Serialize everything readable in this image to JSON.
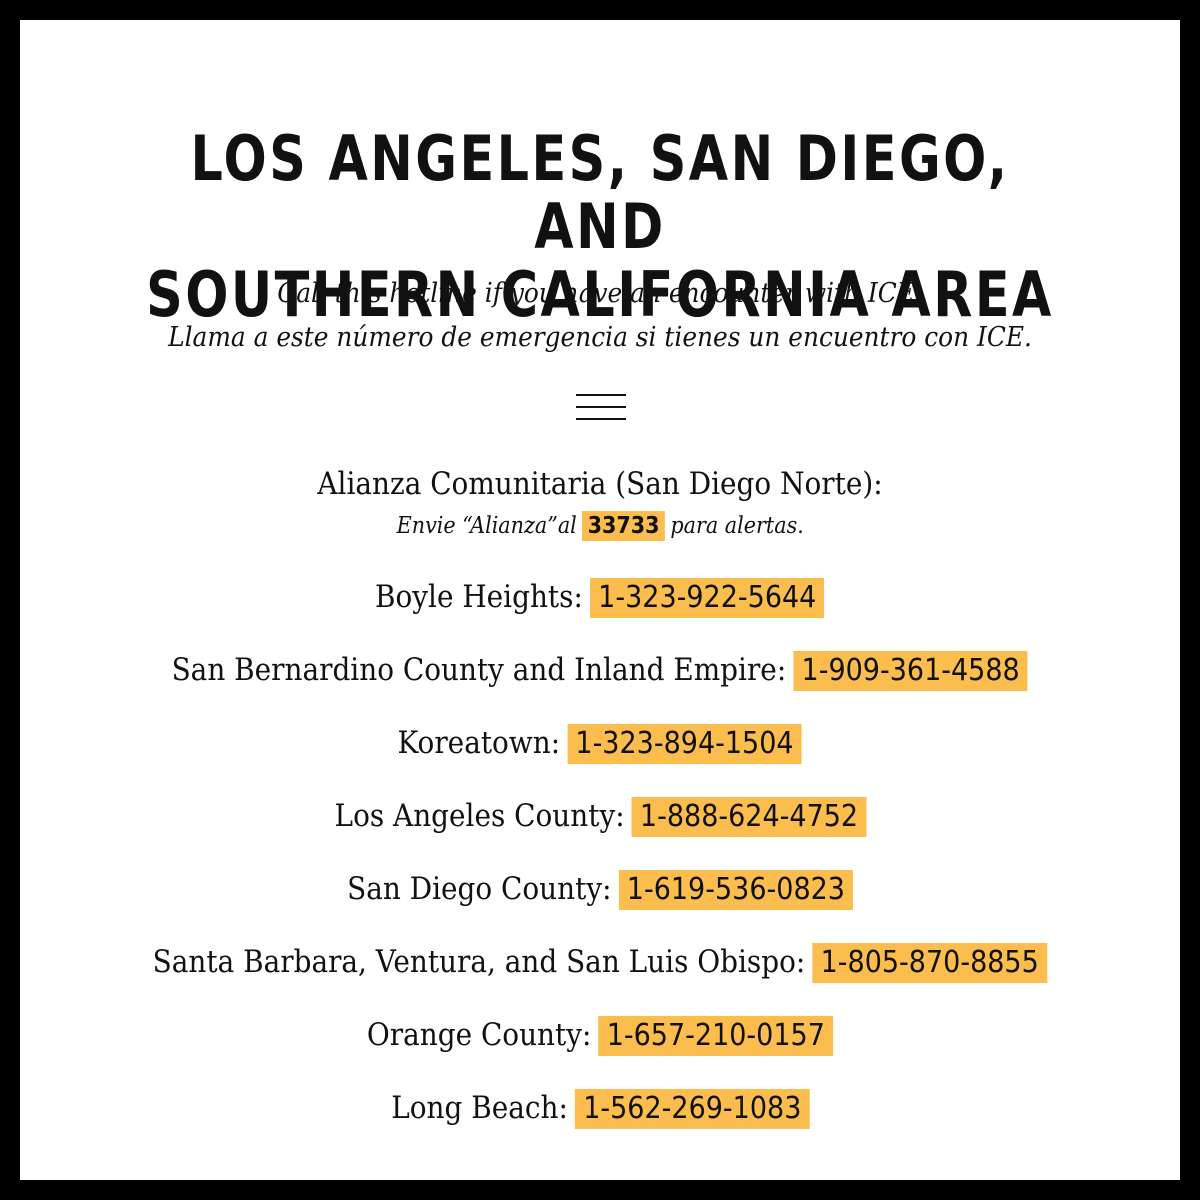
{
  "title": {
    "line1": "LOS ANGELES, SAN DIEGO, AND",
    "line2": "SOUTHERN CALIFORNIA AREA"
  },
  "subtitle": {
    "english": "Call this hotline if you have an encounter with ICE.",
    "spanish": "Llama a este número de emergencia si tienes un encuentro con ICE."
  },
  "divider_icon": "menu-icon",
  "alianza": {
    "name": "Alianza Comunitaria",
    "region": "(San Diego Norte):",
    "text_before": "Envie “Alianza”al",
    "code": "33733",
    "text_after": "para alertas."
  },
  "hotlines": [
    {
      "area": "Boyle Heights:",
      "phone": "1-323-922-5644"
    },
    {
      "area": "San Bernardino County and Inland Empire:",
      "phone": "1-909-361-4588"
    },
    {
      "area": "Koreatown:",
      "phone": "1-323-894-1504"
    },
    {
      "area": "Los Angeles County:",
      "phone": "1-888-624-4752"
    },
    {
      "area": "San Diego County:",
      "phone": "1-619-536-0823"
    },
    {
      "area": "Santa Barbara, Ventura, and San Luis Obispo:",
      "phone": "1-805-870-8855"
    },
    {
      "area": "Orange County:",
      "phone": "1-657-210-0157"
    },
    {
      "area": "Long Beach:",
      "phone": "1-562-269-1083"
    }
  ],
  "colors": {
    "highlight": "#fbbd4d",
    "border": "#000000",
    "text": "#111111"
  }
}
